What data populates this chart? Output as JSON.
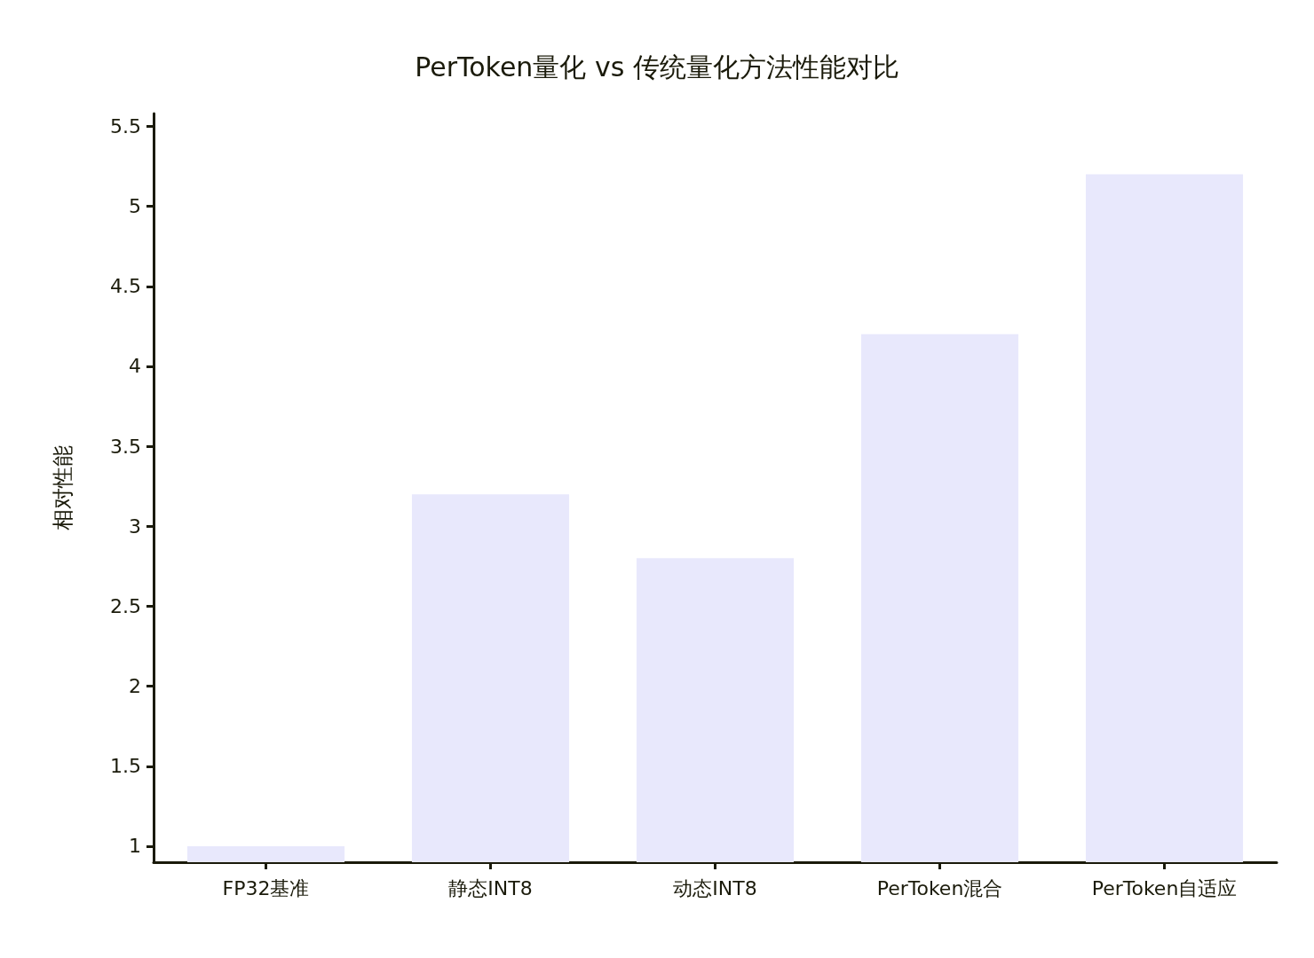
{
  "chart_data": {
    "type": "bar",
    "title": "PerToken量化 vs 传统量化方法性能对比",
    "ylabel": "相对性能",
    "categories": [
      "FP32基准",
      "静态INT8",
      "动态INT8",
      "PerToken混合",
      "PerToken自适应"
    ],
    "values": [
      1.0,
      3.2,
      2.8,
      4.2,
      5.2
    ],
    "color": "#e8e8fc",
    "ylim": [
      0.9,
      5.58
    ],
    "yticks": [
      1,
      1.5,
      2,
      2.5,
      3,
      3.5,
      4,
      4.5,
      5,
      5.5
    ],
    "grid": false
  }
}
